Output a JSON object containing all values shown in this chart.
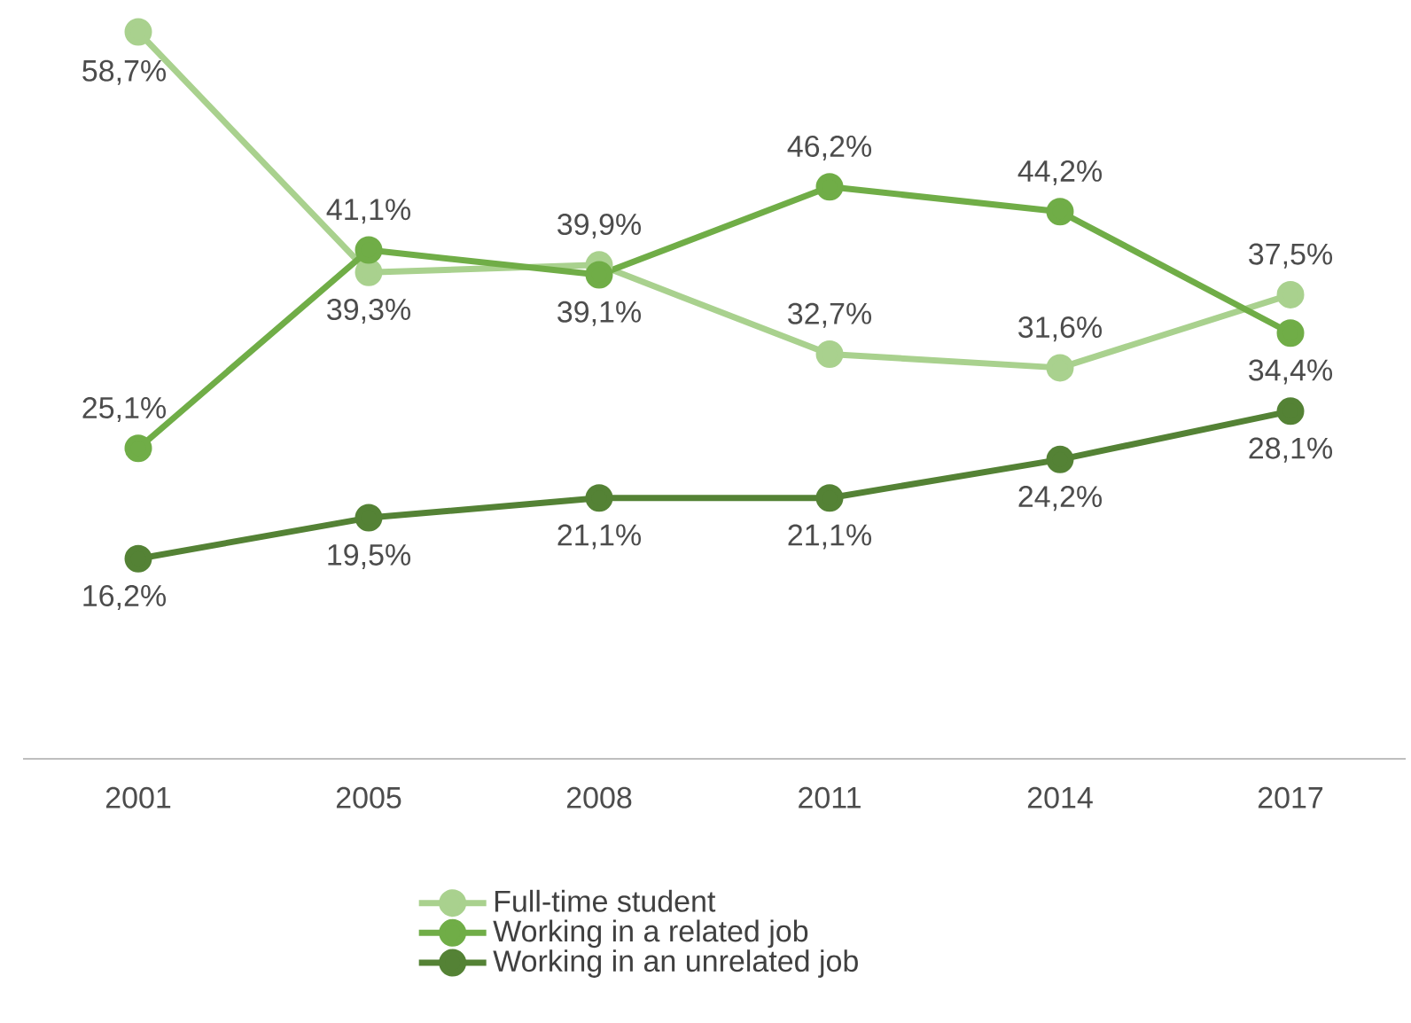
{
  "chart_data": {
    "type": "line",
    "categories": [
      "2001",
      "2005",
      "2008",
      "2011",
      "2014",
      "2017"
    ],
    "series": [
      {
        "name": "Full-time student",
        "color": "#a9d18e",
        "values": [
          58.7,
          39.3,
          39.9,
          32.7,
          31.6,
          37.5
        ],
        "value_labels": [
          "58,7%",
          "39,3%",
          "39,9%",
          "32,7%",
          "31,6%",
          "37,5%"
        ]
      },
      {
        "name": "Working in a related job",
        "color": "#70ad47",
        "values": [
          25.1,
          41.1,
          39.1,
          46.2,
          44.2,
          34.4
        ],
        "value_labels": [
          "25,1%",
          "41,1%",
          "39,1%",
          "46,2%",
          "44,2%",
          "34,4%"
        ]
      },
      {
        "name": "Working in an unrelated job",
        "color": "#548235",
        "values": [
          16.2,
          19.5,
          21.1,
          21.1,
          24.2,
          28.1
        ],
        "value_labels": [
          "16,2%",
          "19,5%",
          "21,1%",
          "21,1%",
          "24,2%",
          "28,1%"
        ]
      }
    ],
    "tick_labels": "x",
    "marker": "circle",
    "line_style": "solid",
    "legend": "bottom"
  }
}
